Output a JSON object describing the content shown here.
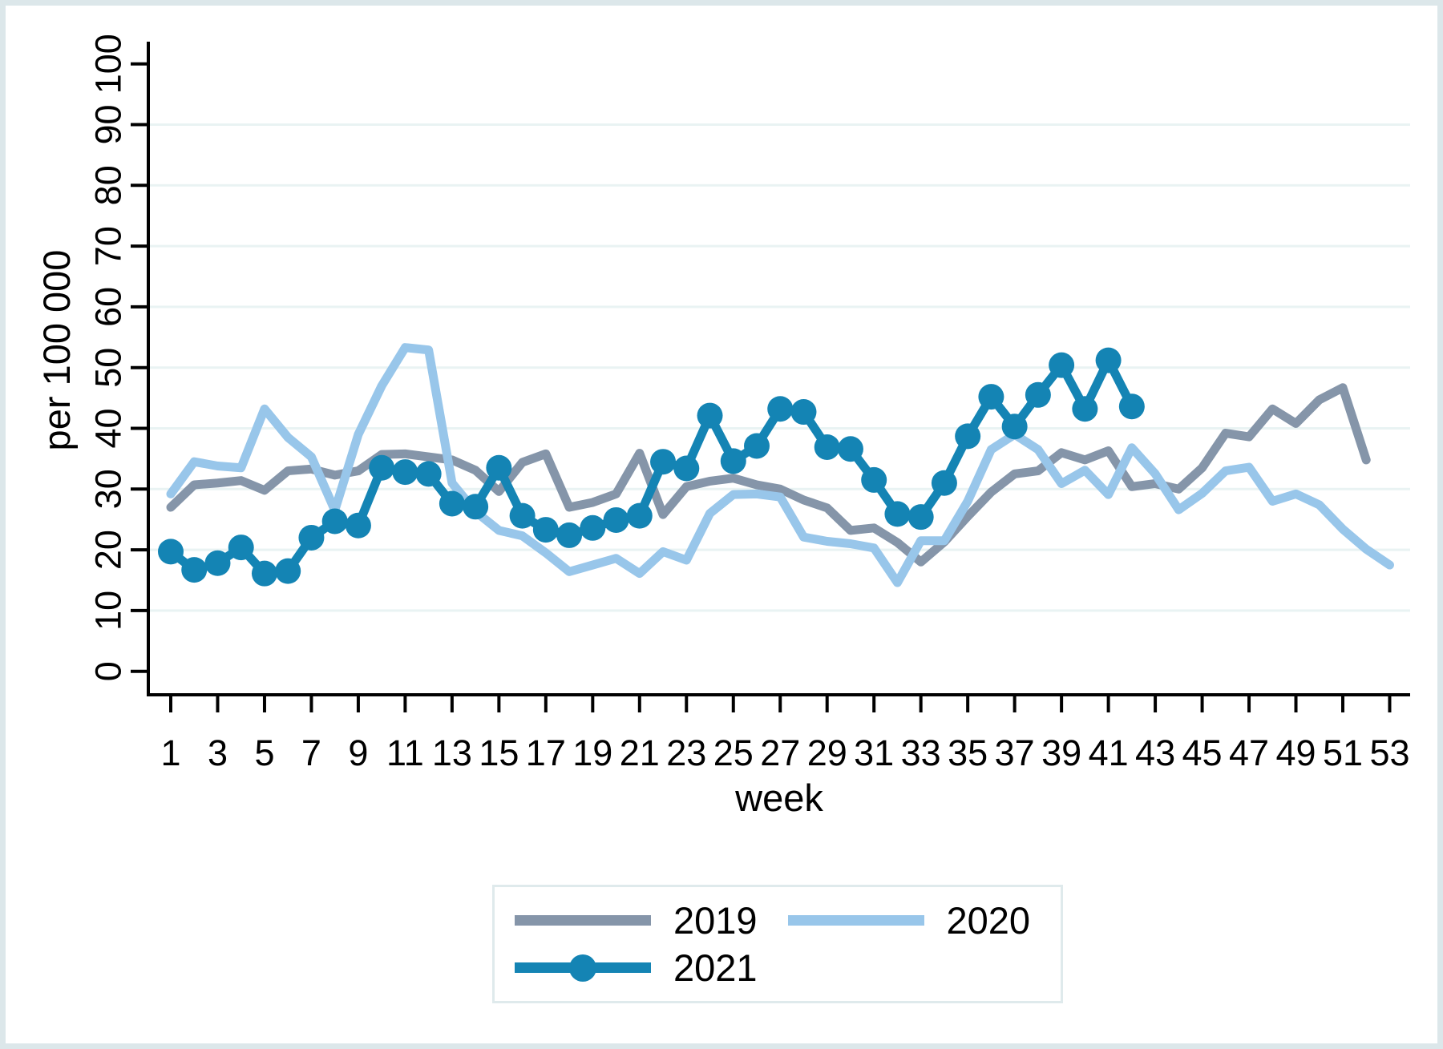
{
  "page": {
    "background": "#ffffff",
    "frame_border_color": "#dce7ea",
    "legend_border_color": "#dfeaec",
    "axis_color": "#000000",
    "grid_color": "#e9f3f3",
    "text_color": "#000000"
  },
  "chart_data": {
    "type": "line",
    "title": "",
    "xlabel": "week",
    "ylabel": "per 100 000",
    "xlim": [
      1,
      53
    ],
    "ylim": [
      0,
      100
    ],
    "yticks": [
      0,
      10,
      20,
      30,
      40,
      50,
      60,
      70,
      80,
      90,
      100
    ],
    "xticks": [
      1,
      3,
      5,
      7,
      9,
      11,
      13,
      15,
      17,
      19,
      21,
      23,
      25,
      27,
      29,
      31,
      33,
      35,
      37,
      39,
      41,
      43,
      45,
      47,
      49,
      51,
      53
    ],
    "grid": "horizontal",
    "gridline_values": [
      10,
      20,
      30,
      40,
      50,
      60,
      70,
      80,
      90
    ],
    "legend_position": "bottom",
    "series": [
      {
        "name": "2019",
        "color": "#8595a9",
        "marker": "none",
        "start_week": 1,
        "values": [
          27,
          30.7,
          31,
          31.4,
          29.8,
          33,
          33.3,
          32.3,
          33,
          35.7,
          35.8,
          35.3,
          34.8,
          33.1,
          29.6,
          34.4,
          35.8,
          27,
          27.8,
          29.2,
          35.9,
          25.8,
          30.4,
          31.3,
          31.8,
          30.7,
          30,
          28.2,
          26.9,
          23.2,
          23.6,
          21.2,
          18,
          21.3,
          25.5,
          29.5,
          32.5,
          33,
          36,
          34.8,
          36.3,
          30.4,
          30.9,
          30,
          33.5,
          39.2,
          38.6,
          43.2,
          40.8,
          44.7,
          46.7,
          34.8
        ]
      },
      {
        "name": "2020",
        "color": "#98c6ea",
        "marker": "none",
        "start_week": 1,
        "values": [
          29.2,
          34.5,
          33.8,
          33.5,
          43.2,
          38.5,
          35.3,
          26.5,
          39,
          47,
          53.3,
          52.9,
          31,
          26.3,
          23.2,
          22.3,
          19.5,
          16.4,
          17.5,
          18.6,
          16.1,
          19.7,
          18.3,
          26,
          29.1,
          29.2,
          28.7,
          22.1,
          21.4,
          21,
          20.3,
          14.6,
          21.5,
          21.5,
          28,
          36.5,
          39,
          36.5,
          30.9,
          33.1,
          29.1,
          36.8,
          32.5,
          26.6,
          29.3,
          33,
          33.6,
          28,
          29.2,
          27.4,
          23.4,
          20.1,
          17.5
        ]
      },
      {
        "name": "2021",
        "color": "#1484b4",
        "marker": "circle",
        "start_week": 1,
        "values": [
          19.7,
          16.7,
          17.8,
          20.4,
          16.1,
          16.5,
          22,
          24.7,
          24,
          33.5,
          32.8,
          32.5,
          27.6,
          27.1,
          33.5,
          25.6,
          23.3,
          22.4,
          23.6,
          24.9,
          25.6,
          34.5,
          33.4,
          42.1,
          34.6,
          37.1,
          43.2,
          42.7,
          36.9,
          36.6,
          31.5,
          25.9,
          25.4,
          31,
          38.7,
          45.2,
          40.3,
          45.5,
          50.4,
          43.2,
          51.2,
          43.6
        ]
      }
    ]
  }
}
